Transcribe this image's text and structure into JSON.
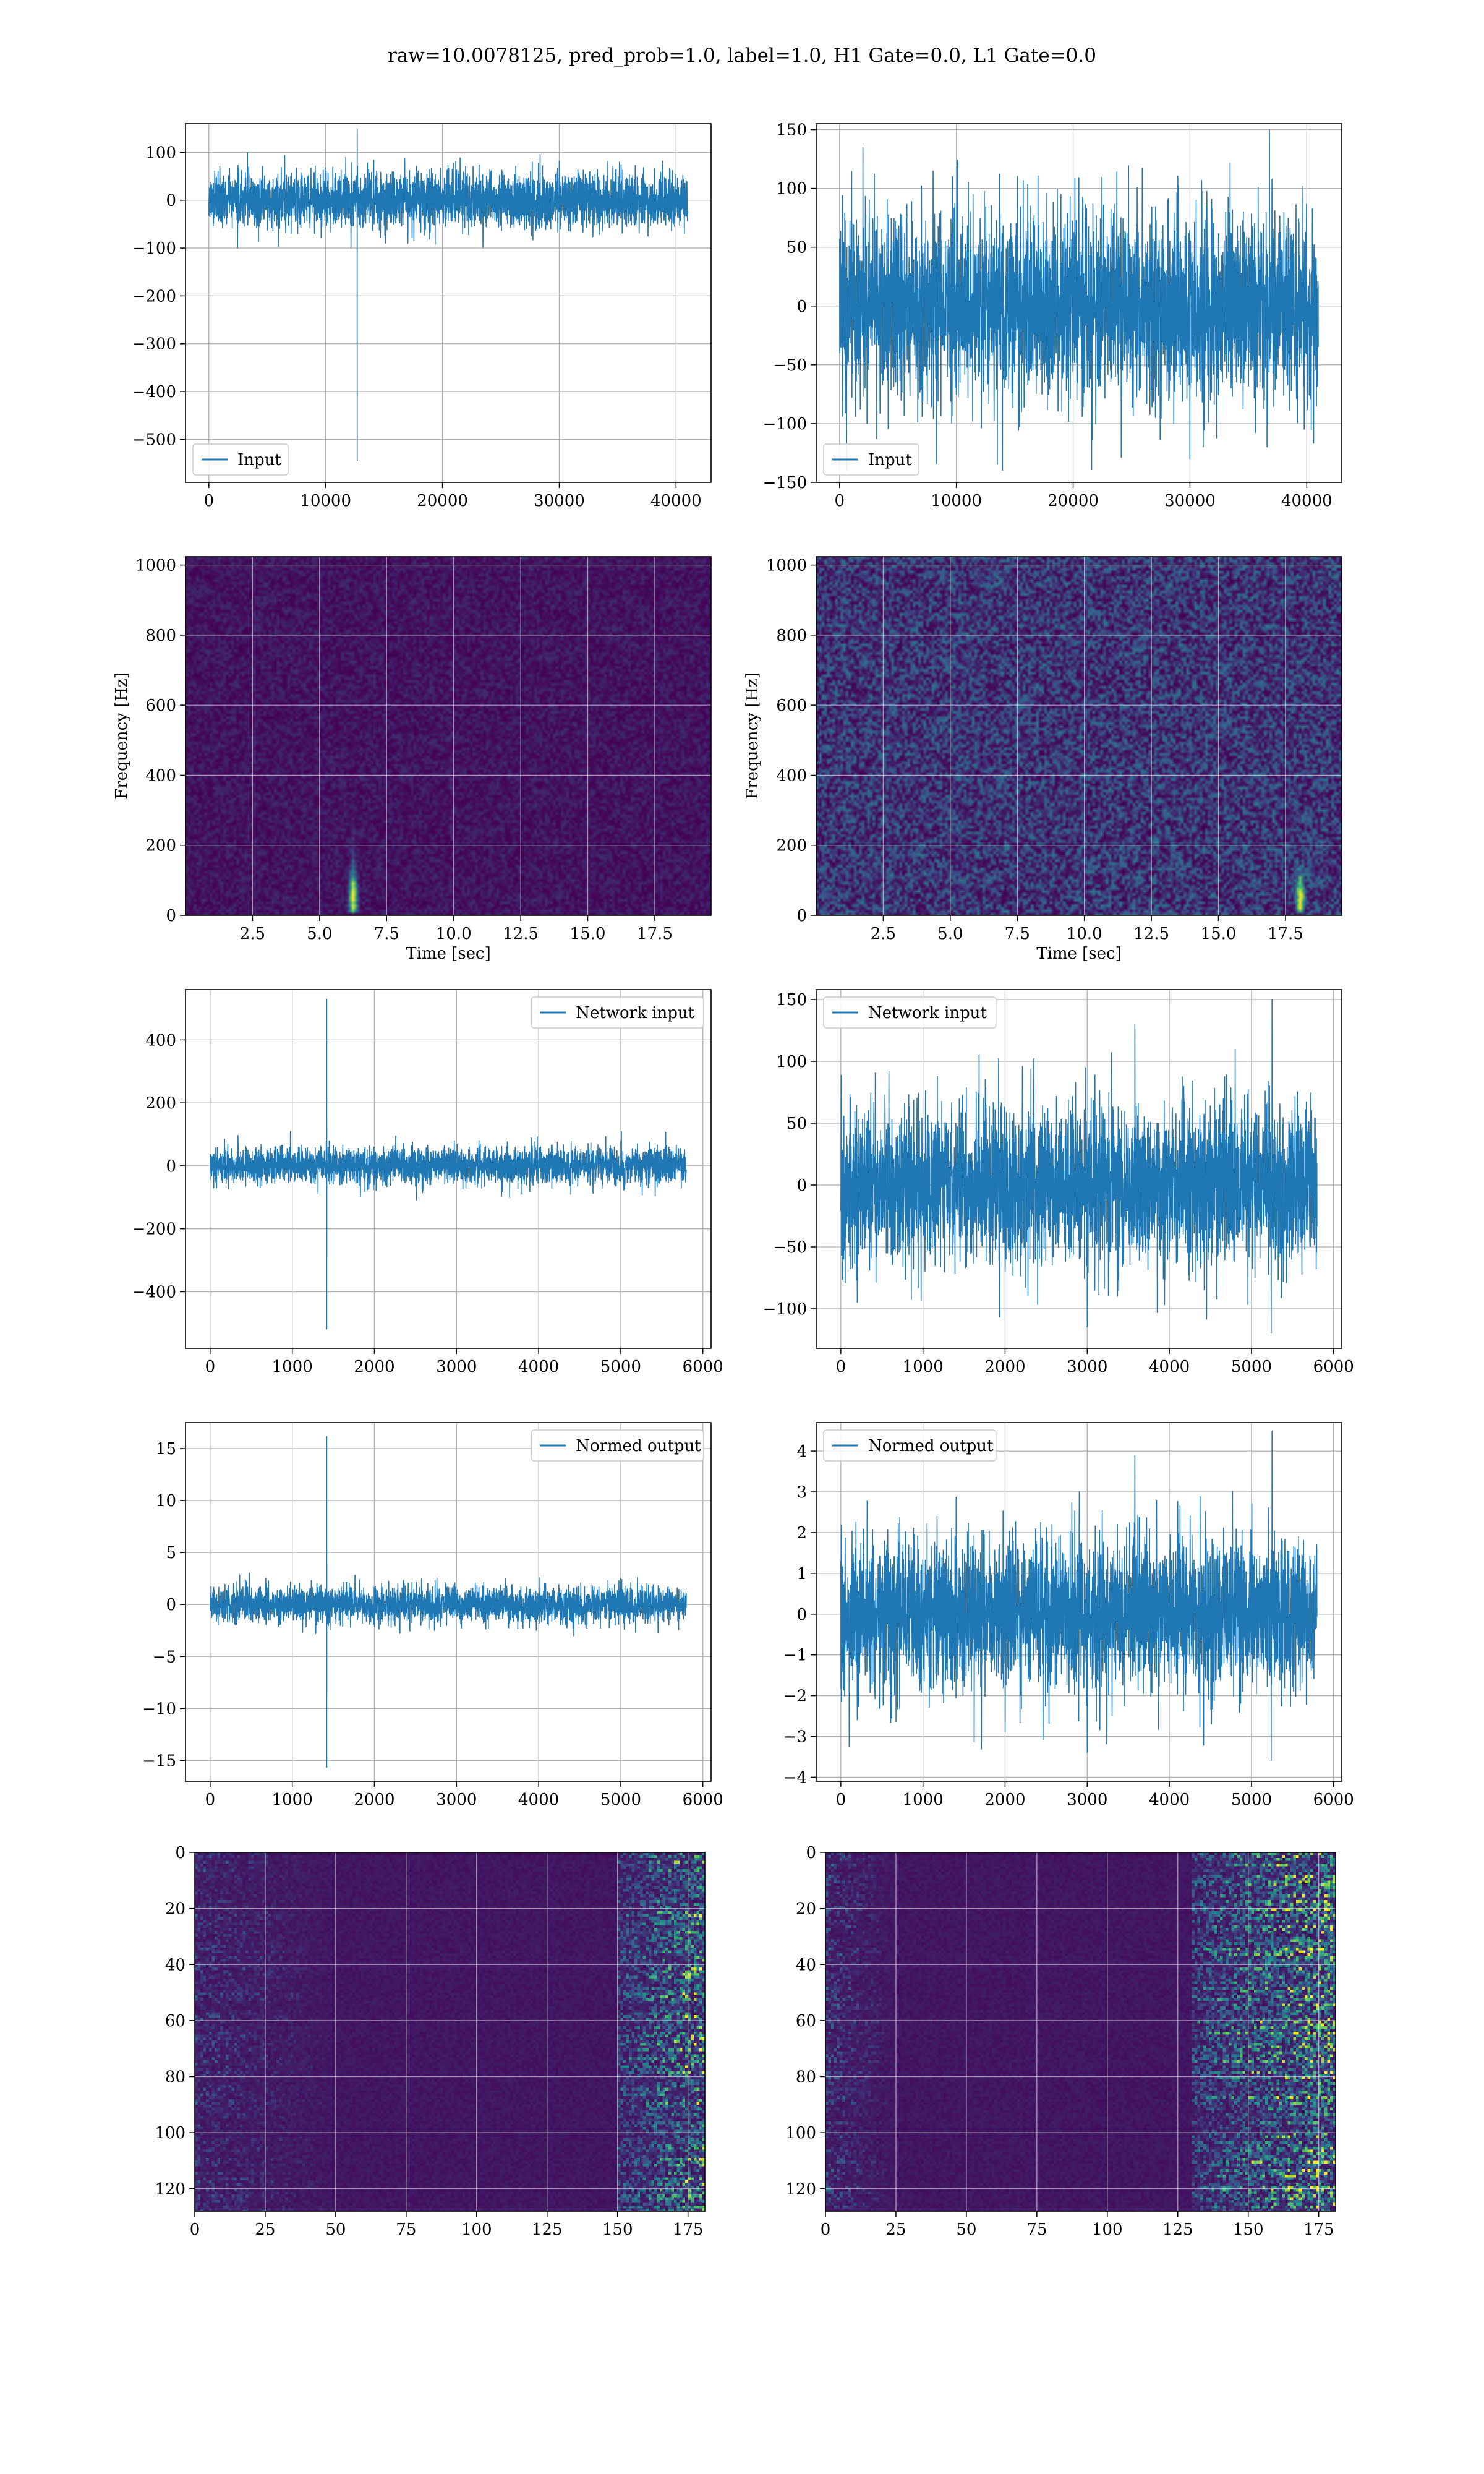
{
  "figure_title": "raw=10.0078125, pred_prob=1.0, label=1.0, H1 Gate=0.0, L1 Gate=0.0",
  "colors": {
    "line": "#1f77b4",
    "grid": "#b0b0b0",
    "viridis_low": "#440154",
    "viridis_mid": "#21918c",
    "viridis_high": "#fde725"
  },
  "chart_data": [
    {
      "id": "h1-input",
      "type": "line",
      "legend": "Input",
      "legend_loc": "lower-left",
      "xlim": [
        -2000,
        43000
      ],
      "ylim": [
        -590,
        160
      ],
      "xticks": [
        0,
        10000,
        20000,
        30000,
        40000
      ],
      "yticks": [
        -500,
        -400,
        -300,
        -200,
        -100,
        0,
        100
      ],
      "series": [
        {
          "n": 41000,
          "noise_std": 30,
          "noise_max": 100,
          "glitch": {
            "x": 12700,
            "values": [
              -20,
              -160,
              -300,
              150,
              -545,
              -200,
              -100
            ]
          }
        }
      ],
      "grid": true
    },
    {
      "id": "l1-input",
      "type": "line",
      "legend": "Input",
      "legend_loc": "lower-left",
      "xlim": [
        -2000,
        43000
      ],
      "ylim": [
        -150,
        155
      ],
      "xticks": [
        0,
        10000,
        20000,
        30000,
        40000
      ],
      "yticks": [
        -150,
        -100,
        -50,
        0,
        50,
        100,
        150
      ],
      "series": [
        {
          "n": 41000,
          "noise_std": 40,
          "noise_max": 140,
          "spikes": [
            [
              36800,
              150
            ],
            [
              36600,
              -120
            ],
            [
              2000,
              135
            ],
            [
              13500,
              -135
            ],
            [
              600,
              -140
            ]
          ]
        }
      ],
      "grid": true
    },
    {
      "id": "h1-spectrogram",
      "type": "heatmap",
      "xlabel": "Time [sec]",
      "ylabel": "Frequency [Hz]",
      "xlim": [
        0,
        19.6
      ],
      "ylim": [
        0,
        1024
      ],
      "xticks": [
        2.5,
        5.0,
        7.5,
        10.0,
        12.5,
        15.0,
        17.5
      ],
      "xticklabels": [
        "2.5",
        "5.0",
        "7.5",
        "10.0",
        "12.5",
        "15.0",
        "17.5"
      ],
      "yticks": [
        0,
        200,
        400,
        600,
        800,
        1000
      ],
      "background_level": 0.08,
      "features": [
        {
          "t": 6.2,
          "f_low": 20,
          "f_high": 300,
          "peak_f": 60,
          "intensity": 1.0
        }
      ],
      "grid": true
    },
    {
      "id": "l1-spectrogram",
      "type": "heatmap",
      "xlabel": "Time [sec]",
      "ylabel": "Frequency [Hz]",
      "xlim": [
        0,
        19.6
      ],
      "ylim": [
        0,
        1024
      ],
      "xticks": [
        2.5,
        5.0,
        7.5,
        10.0,
        12.5,
        15.0,
        17.5
      ],
      "xticklabels": [
        "2.5",
        "5.0",
        "7.5",
        "10.0",
        "12.5",
        "15.0",
        "17.5"
      ],
      "yticks": [
        0,
        200,
        400,
        600,
        800,
        1000
      ],
      "background_level": 0.22,
      "features": [
        {
          "t": 18.0,
          "f_low": 20,
          "f_high": 150,
          "peak_f": 60,
          "intensity": 0.9
        }
      ],
      "grid": true
    },
    {
      "id": "h1-network-input",
      "type": "line",
      "legend": "Network input",
      "legend_loc": "upper-right",
      "xlim": [
        -300,
        6100
      ],
      "ylim": [
        -580,
        560
      ],
      "xticks": [
        0,
        1000,
        2000,
        3000,
        4000,
        5000,
        6000
      ],
      "yticks": [
        -400,
        -200,
        0,
        200,
        400
      ],
      "series": [
        {
          "n": 5800,
          "noise_std": 30,
          "noise_max": 110,
          "glitch": {
            "x": 1420,
            "values": [
              60,
              530,
              -520,
              240,
              -290,
              120,
              -80
            ]
          }
        }
      ],
      "grid": true
    },
    {
      "id": "l1-network-input",
      "type": "line",
      "legend": "Network input",
      "legend_loc": "upper-left",
      "xlim": [
        -300,
        6100
      ],
      "ylim": [
        -132,
        158
      ],
      "xticks": [
        0,
        1000,
        2000,
        3000,
        4000,
        5000,
        6000
      ],
      "yticks": [
        -100,
        -50,
        0,
        50,
        100,
        150
      ],
      "series": [
        {
          "n": 5800,
          "noise_std": 32,
          "noise_max": 110,
          "spikes": [
            [
              5250,
              150
            ],
            [
              5240,
              -120
            ],
            [
              3580,
              130
            ],
            [
              3000,
              -115
            ],
            [
              200,
              -95
            ]
          ]
        }
      ],
      "grid": true
    },
    {
      "id": "h1-normed-output",
      "type": "line",
      "legend": "Normed output",
      "legend_loc": "upper-right",
      "xlim": [
        -300,
        6100
      ],
      "ylim": [
        -17,
        17.5
      ],
      "xticks": [
        0,
        1000,
        2000,
        3000,
        4000,
        5000,
        6000
      ],
      "yticks": [
        -15,
        -10,
        -5,
        0,
        5,
        10,
        15
      ],
      "series": [
        {
          "n": 5800,
          "noise_std": 0.9,
          "noise_max": 3.5,
          "glitch": {
            "x": 1420,
            "values": [
              2,
              16.2,
              -15.7,
              7.3,
              -8.7,
              4,
              -2
            ]
          }
        }
      ],
      "grid": true
    },
    {
      "id": "l1-normed-output",
      "type": "line",
      "legend": "Normed output",
      "legend_loc": "upper-left",
      "xlim": [
        -300,
        6100
      ],
      "ylim": [
        -4.1,
        4.7
      ],
      "xticks": [
        0,
        1000,
        2000,
        3000,
        4000,
        5000,
        6000
      ],
      "yticks": [
        -4,
        -3,
        -2,
        -1,
        0,
        1,
        2,
        3,
        4
      ],
      "series": [
        {
          "n": 5800,
          "noise_std": 0.95,
          "noise_max": 3.4,
          "spikes": [
            [
              5250,
              4.5
            ],
            [
              5240,
              -3.6
            ],
            [
              3580,
              3.9
            ],
            [
              3000,
              -3.4
            ],
            [
              200,
              -2.6
            ]
          ]
        }
      ],
      "grid": true
    },
    {
      "id": "h1-feature-map",
      "type": "heatmap",
      "xlim": [
        0,
        181
      ],
      "ylim": [
        128,
        0
      ],
      "xticks": [
        0,
        25,
        50,
        75,
        100,
        125,
        150,
        175
      ],
      "yticks": [
        0,
        20,
        40,
        60,
        80,
        100,
        120
      ],
      "rows": 128,
      "cols": 181,
      "hot_region": {
        "x_from": 150,
        "x_to": 181,
        "level": 0.6
      },
      "left_region": {
        "x_from": 0,
        "x_to": 50,
        "level": 0.25
      },
      "grid": true
    },
    {
      "id": "l1-feature-map",
      "type": "heatmap",
      "xlim": [
        0,
        181
      ],
      "ylim": [
        128,
        0
      ],
      "xticks": [
        0,
        25,
        50,
        75,
        100,
        125,
        150,
        175
      ],
      "yticks": [
        0,
        20,
        40,
        60,
        80,
        100,
        120
      ],
      "rows": 128,
      "cols": 181,
      "hot_region": {
        "x_from": 130,
        "x_to": 181,
        "level": 0.75
      },
      "left_region": {
        "x_from": 0,
        "x_to": 25,
        "level": 0.3
      },
      "grid": true
    }
  ]
}
